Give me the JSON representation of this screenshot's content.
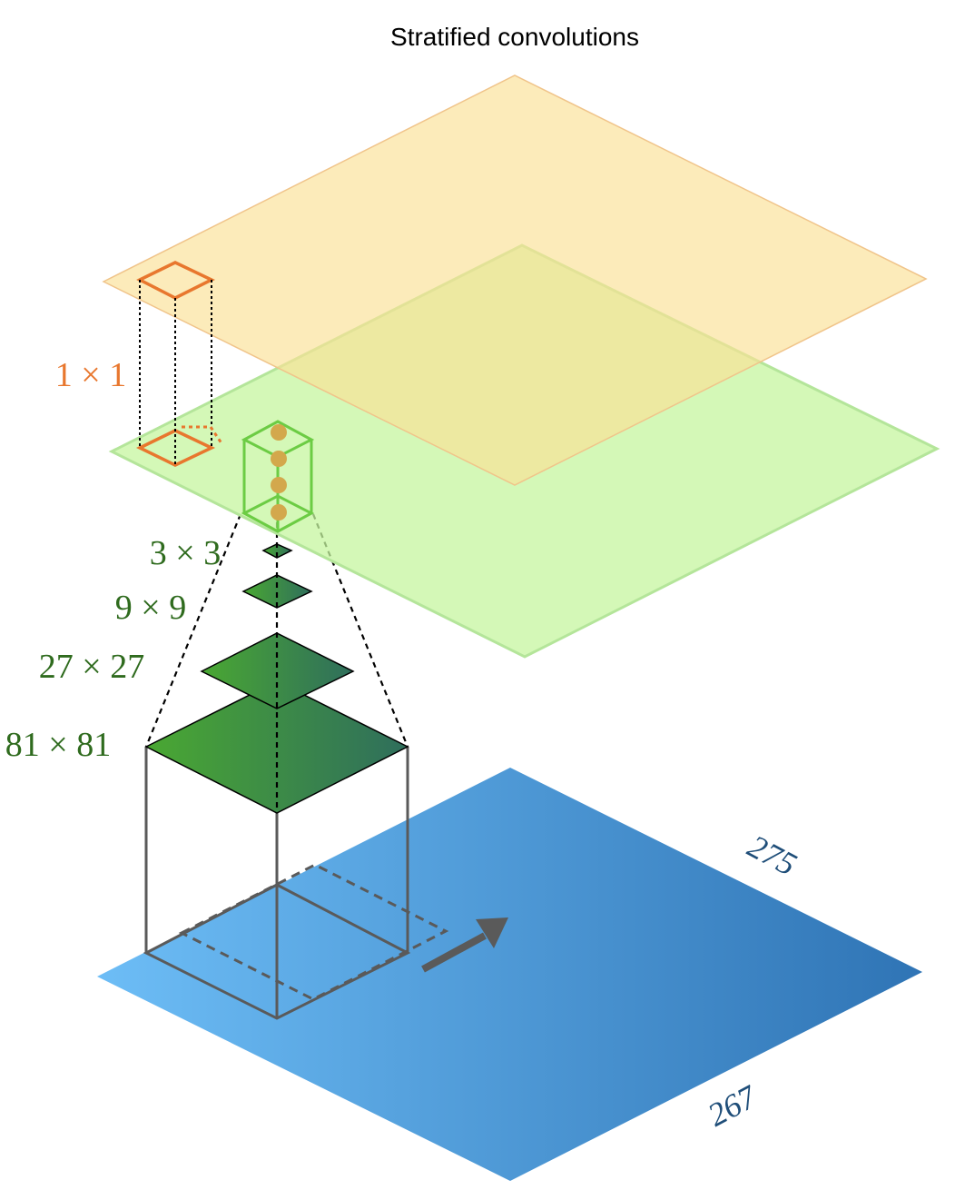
{
  "title": "Stratified  convolutions",
  "labels": {
    "one_by_one": "1 × 1",
    "three_by_three": "3 × 3",
    "nine_by_nine": "9 × 9",
    "twenty_seven": "27 × 27",
    "eighty_one": "81 × 81",
    "dim_width": "275",
    "dim_height": "267"
  },
  "colors": {
    "top_layer": "#fbe7a9",
    "middle_layer": "#d4f7b4",
    "bottom_layer_start": "#6dbdf6",
    "bottom_layer_end": "#2f74b5",
    "orange": "#e8772e",
    "green_label": "#2f6b1e",
    "blue_label": "#1f4e79",
    "green_box": "#6ccc44"
  }
}
